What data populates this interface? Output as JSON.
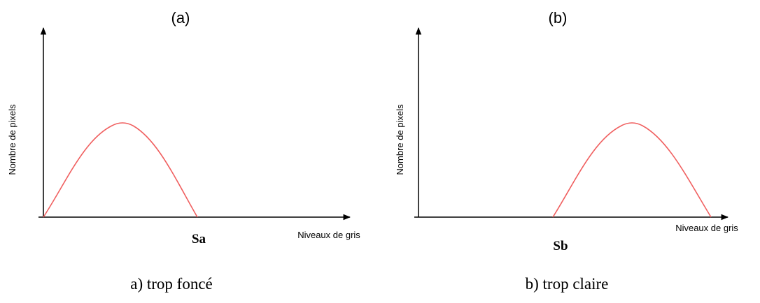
{
  "panels": [
    {
      "label": "(a)",
      "y_axis_label": "Nombre de pixels",
      "x_axis_label": "Niveaux de gris",
      "threshold": "Sa",
      "caption": "a) trop foncé"
    },
    {
      "label": "(b)",
      "y_axis_label": "Nombre de pixels",
      "x_axis_label": "Niveaux de gris",
      "threshold": "Sb",
      "caption": "b) trop claire"
    }
  ]
}
